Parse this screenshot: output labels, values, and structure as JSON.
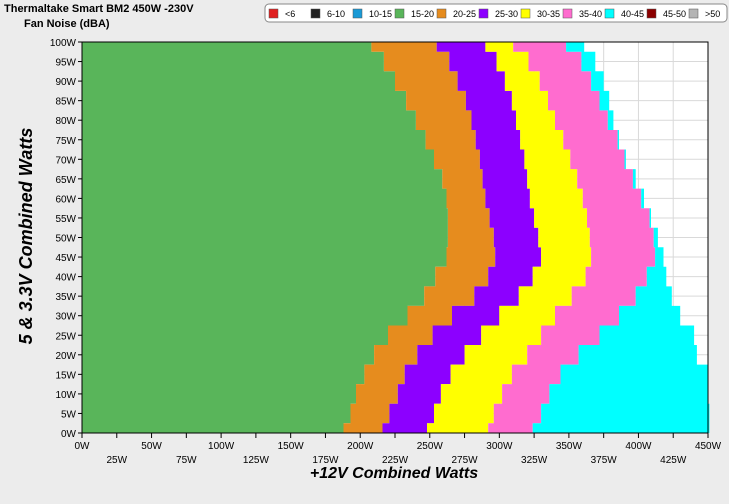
{
  "chart_data": {
    "type": "heatmap",
    "title": "Thermaltake Smart BM2 450W -230V",
    "subtitle": "Fan Noise (dBA)",
    "xlabel": "+12V Combined Watts",
    "ylabel": "5 & 3.3V Combined Watts",
    "xlim": [
      0,
      450
    ],
    "ylim": [
      0,
      100
    ],
    "x_ticks": [
      "0W",
      "25W",
      "50W",
      "75W",
      "100W",
      "125W",
      "150W",
      "175W",
      "200W",
      "225W",
      "250W",
      "275W",
      "300W",
      "325W",
      "350W",
      "375W",
      "400W",
      "425W",
      "450W"
    ],
    "y_ticks": [
      "0W",
      "5W",
      "10W",
      "15W",
      "20W",
      "25W",
      "30W",
      "35W",
      "40W",
      "45W",
      "50W",
      "55W",
      "60W",
      "65W",
      "70W",
      "75W",
      "80W",
      "85W",
      "90W",
      "95W",
      "100W"
    ],
    "legend": [
      {
        "label": "<6",
        "color": "#e02020"
      },
      {
        "label": "6-10",
        "color": "#202020"
      },
      {
        "label": "10-15",
        "color": "#1a9ad6"
      },
      {
        "label": "15-20",
        "color": "#59b55a"
      },
      {
        "label": "20-25",
        "color": "#e68c1e"
      },
      {
        "label": "25-30",
        "color": "#8c00ff"
      },
      {
        "label": "30-35",
        "color": "#ffff00"
      },
      {
        "label": "35-40",
        "color": "#ff6ccf"
      },
      {
        "label": "40-45",
        "color": "#00ffff"
      },
      {
        "label": "45-50",
        "color": "#8b0000"
      },
      {
        "label": ">50",
        "color": "#b4b4b4"
      }
    ],
    "legend_position": "top-right",
    "grid": true,
    "y_levels": [
      0,
      5,
      10,
      15,
      20,
      25,
      30,
      35,
      40,
      45,
      50,
      55,
      60,
      65,
      70,
      75,
      80,
      85,
      90,
      95,
      100
    ],
    "boundaries": [
      {
        "band": "15-20",
        "upper_x": [
          188,
          193,
          197,
          203,
          210,
          220,
          234,
          246,
          254,
          262,
          263,
          263,
          262,
          259,
          253,
          247,
          240,
          233,
          225,
          217,
          208
        ]
      },
      {
        "band": "20-25",
        "upper_x": [
          216,
          221,
          227,
          232,
          241,
          252,
          266,
          282,
          292,
          297,
          296,
          293,
          290,
          288,
          286,
          283,
          280,
          276,
          270,
          264,
          255
        ]
      },
      {
        "band": "25-30",
        "upper_x": [
          248,
          253,
          258,
          265,
          275,
          287,
          300,
          314,
          324,
          330,
          328,
          325,
          322,
          320,
          318,
          315,
          312,
          309,
          304,
          298,
          290
        ]
      },
      {
        "band": "30-35",
        "upper_x": [
          292,
          296,
          302,
          309,
          320,
          330,
          340,
          352,
          362,
          366,
          365,
          363,
          360,
          356,
          351,
          346,
          340,
          335,
          329,
          321,
          310
        ]
      },
      {
        "band": "35-40",
        "upper_x": [
          324,
          330,
          336,
          344,
          357,
          372,
          386,
          398,
          406,
          412,
          411,
          408,
          402,
          396,
          390,
          385,
          378,
          372,
          366,
          359,
          348
        ]
      },
      {
        "band": "40-45",
        "upper_x": [
          451,
          451,
          450,
          450,
          442,
          440,
          430,
          424,
          420,
          418,
          414,
          409,
          404,
          398,
          391,
          386,
          382,
          379,
          375,
          369,
          361
        ]
      }
    ]
  }
}
